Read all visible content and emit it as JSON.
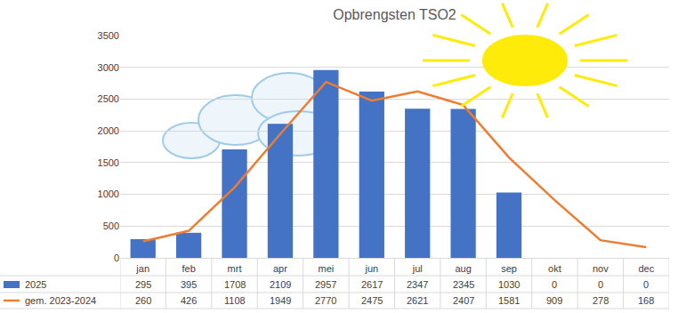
{
  "chart_data": {
    "type": "bar",
    "title": "Opbrengsten TSO2",
    "categories": [
      "jan",
      "feb",
      "mrt",
      "apr",
      "mei",
      "jun",
      "jul",
      "aug",
      "sep",
      "okt",
      "nov",
      "dec"
    ],
    "series": [
      {
        "name": "2025",
        "type": "bar",
        "color": "#4472c4",
        "values": [
          295,
          395,
          1708,
          2109,
          2957,
          2617,
          2347,
          2345,
          1030,
          0,
          0,
          0
        ]
      },
      {
        "name": "gem. 2023-2024",
        "type": "line",
        "color": "#ed7d31",
        "values": [
          260,
          426,
          1108,
          1949,
          2770,
          2475,
          2621,
          2407,
          1581,
          909,
          278,
          168
        ]
      }
    ],
    "ylim": [
      0,
      3500
    ],
    "yticks": [
      0,
      500,
      1000,
      1500,
      2000,
      2500,
      3000,
      3500
    ],
    "grid": true
  }
}
